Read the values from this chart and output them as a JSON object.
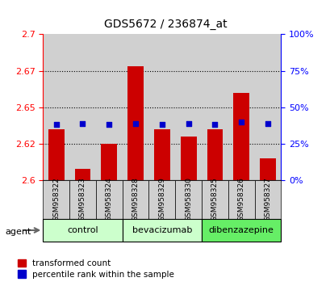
{
  "title": "GDS5672 / 236874_at",
  "samples": [
    "GSM958322",
    "GSM958323",
    "GSM958324",
    "GSM958328",
    "GSM958329",
    "GSM958330",
    "GSM958325",
    "GSM958326",
    "GSM958327"
  ],
  "red_values": [
    2.635,
    2.608,
    2.625,
    2.678,
    2.635,
    2.63,
    2.635,
    2.66,
    2.615
  ],
  "blue_values": [
    38,
    39,
    38,
    39,
    38,
    39,
    38,
    40,
    39
  ],
  "ylim_left": [
    2.6,
    2.7
  ],
  "ylim_right": [
    0,
    100
  ],
  "yticks_left": [
    2.6,
    2.625,
    2.65,
    2.675,
    2.7
  ],
  "yticks_right": [
    0,
    25,
    50,
    75,
    100
  ],
  "groups": [
    {
      "label": "control",
      "indices": [
        0,
        1,
        2
      ],
      "color": "#ccffcc"
    },
    {
      "label": "bevacizumab",
      "indices": [
        3,
        4,
        5
      ],
      "color": "#ccffcc"
    },
    {
      "label": "dibenzazepine",
      "indices": [
        6,
        7,
        8
      ],
      "color": "#66ee66"
    }
  ],
  "red_color": "#cc0000",
  "blue_color": "#0000cc",
  "bar_bg_color": "#d0d0d0",
  "agent_label": "agent",
  "legend_red": "transformed count",
  "legend_blue": "percentile rank within the sample"
}
